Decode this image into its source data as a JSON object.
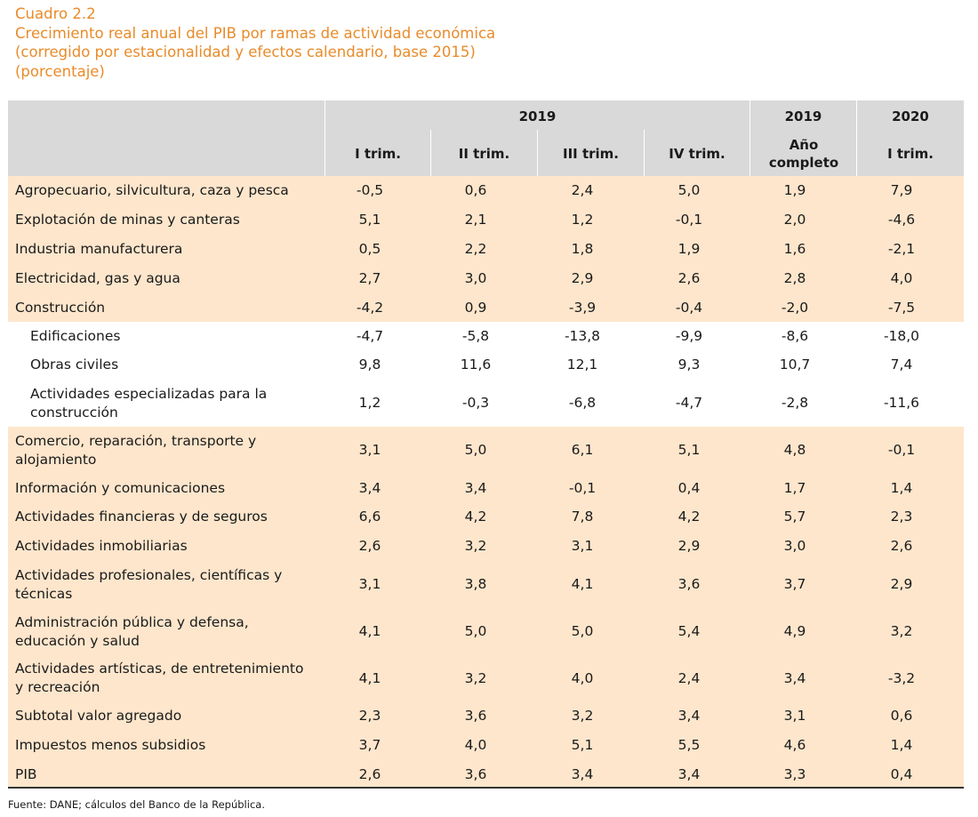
{
  "caption": {
    "number": "Cuadro 2.2",
    "title": "Crecimiento real anual del PIB por ramas de actividad económica",
    "subtitle": "(corregido por estacionalidad y efectos calendario, base 2015)",
    "unit": "(porcentaje)"
  },
  "header": {
    "group_2019": "2019",
    "year_2019": "2019",
    "year_2020": "2020",
    "q1": "I trim.",
    "q2": "II trim.",
    "q3": "III trim.",
    "q4": "IV trim.",
    "full_year": "Año completo",
    "q1_2020": "I trim."
  },
  "rows": [
    {
      "label": "Agropecuario, silvicultura, caza y pesca",
      "values": [
        "-0,5",
        "0,6",
        "2,4",
        "5,0",
        "1,9",
        "7,9"
      ],
      "shaded": true,
      "sub": false
    },
    {
      "label": "Explotación de minas y canteras",
      "values": [
        "5,1",
        "2,1",
        "1,2",
        "-0,1",
        "2,0",
        "-4,6"
      ],
      "shaded": true,
      "sub": false
    },
    {
      "label": "Industria manufacturera",
      "values": [
        "0,5",
        "2,2",
        "1,8",
        "1,9",
        "1,6",
        "-2,1"
      ],
      "shaded": true,
      "sub": false
    },
    {
      "label": "Electricidad, gas y agua",
      "values": [
        "2,7",
        "3,0",
        "2,9",
        "2,6",
        "2,8",
        "4,0"
      ],
      "shaded": true,
      "sub": false
    },
    {
      "label": "Construcción",
      "values": [
        "-4,2",
        "0,9",
        "-3,9",
        "-0,4",
        "-2,0",
        "-7,5"
      ],
      "shaded": true,
      "sub": false
    },
    {
      "label": "Edificaciones",
      "values": [
        "-4,7",
        "-5,8",
        "-13,8",
        "-9,9",
        "-8,6",
        "-18,0"
      ],
      "shaded": false,
      "sub": true
    },
    {
      "label": "Obras civiles",
      "values": [
        "9,8",
        "11,6",
        "12,1",
        "9,3",
        "10,7",
        "7,4"
      ],
      "shaded": false,
      "sub": true
    },
    {
      "label": "Actividades especializadas para la construcción",
      "values": [
        "1,2",
        "-0,3",
        "-6,8",
        "-4,7",
        "-2,8",
        "-11,6"
      ],
      "shaded": false,
      "sub": true
    },
    {
      "label": "Comercio, reparación, transporte y alojamiento",
      "values": [
        "3,1",
        "5,0",
        "6,1",
        "5,1",
        "4,8",
        "-0,1"
      ],
      "shaded": true,
      "sub": false
    },
    {
      "label": "Información y comunicaciones",
      "values": [
        "3,4",
        "3,4",
        "-0,1",
        "0,4",
        "1,7",
        "1,4"
      ],
      "shaded": true,
      "sub": false
    },
    {
      "label": "Actividades financieras y de seguros",
      "values": [
        "6,6",
        "4,2",
        "7,8",
        "4,2",
        "5,7",
        "2,3"
      ],
      "shaded": true,
      "sub": false
    },
    {
      "label": "Actividades inmobiliarias",
      "values": [
        "2,6",
        "3,2",
        "3,1",
        "2,9",
        "3,0",
        "2,6"
      ],
      "shaded": true,
      "sub": false
    },
    {
      "label": "Actividades profesionales, científicas y técnicas",
      "values": [
        "3,1",
        "3,8",
        "4,1",
        "3,6",
        "3,7",
        "2,9"
      ],
      "shaded": true,
      "sub": false
    },
    {
      "label": "Administración pública y defensa, educación y salud",
      "values": [
        "4,1",
        "5,0",
        "5,0",
        "5,4",
        "4,9",
        "3,2"
      ],
      "shaded": true,
      "sub": false
    },
    {
      "label": "Actividades artísticas, de entretenimiento y recreación",
      "values": [
        "4,1",
        "3,2",
        "4,0",
        "2,4",
        "3,4",
        "-3,2"
      ],
      "shaded": true,
      "sub": false
    },
    {
      "label": "Subtotal valor agregado",
      "values": [
        "2,3",
        "3,6",
        "3,2",
        "3,4",
        "3,1",
        "0,6"
      ],
      "shaded": true,
      "sub": false
    },
    {
      "label": "Impuestos menos subsidios",
      "values": [
        "3,7",
        "4,0",
        "5,1",
        "5,5",
        "4,6",
        "1,4"
      ],
      "shaded": true,
      "sub": false
    },
    {
      "label": "PIB",
      "values": [
        "2,6",
        "3,6",
        "3,4",
        "3,4",
        "3,3",
        "0,4"
      ],
      "shaded": true,
      "sub": false
    }
  ],
  "source": "Fuente: DANE; cálculos del Banco de la República."
}
